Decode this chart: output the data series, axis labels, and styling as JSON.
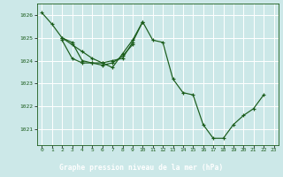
{
  "title": "Graphe pression niveau de la mer (hPa)",
  "bg_color": "#cce8e8",
  "plot_bg_color": "#cce8e8",
  "grid_color": "#ffffff",
  "line_color": "#1a5c1a",
  "xlabel_bg": "#2d6e2d",
  "xlabel_fg": "#ffffff",
  "xlim": [
    -0.5,
    23.5
  ],
  "ylim": [
    1020.3,
    1026.5
  ],
  "yticks": [
    1021,
    1022,
    1023,
    1024,
    1025,
    1026
  ],
  "xticks": [
    0,
    1,
    2,
    3,
    4,
    5,
    6,
    7,
    8,
    9,
    10,
    11,
    12,
    13,
    14,
    15,
    16,
    17,
    18,
    19,
    20,
    21,
    22,
    23
  ],
  "series": [
    [
      1026.1,
      1025.6,
      1025.0,
      1024.8,
      1024.0,
      1023.9,
      1023.9,
      1024.0,
      1024.1,
      1024.8,
      1025.7,
      1024.9,
      1024.8,
      1023.2,
      1022.6,
      1022.5,
      1021.2,
      1020.6,
      1020.6,
      1021.2,
      1021.6,
      1021.9,
      1022.5,
      null
    ],
    [
      null,
      null,
      1025.0,
      1024.7,
      1024.4,
      1024.1,
      1023.9,
      1023.7,
      1024.3,
      1024.9,
      1025.7,
      null,
      null,
      null,
      null,
      null,
      null,
      null,
      null,
      null,
      null,
      null,
      null,
      null
    ],
    [
      null,
      null,
      1024.9,
      1024.1,
      1023.9,
      1023.9,
      1023.8,
      1023.9,
      1024.2,
      1024.7,
      null,
      null,
      null,
      null,
      null,
      null,
      null,
      null,
      null,
      null,
      null,
      null,
      null,
      null
    ]
  ]
}
